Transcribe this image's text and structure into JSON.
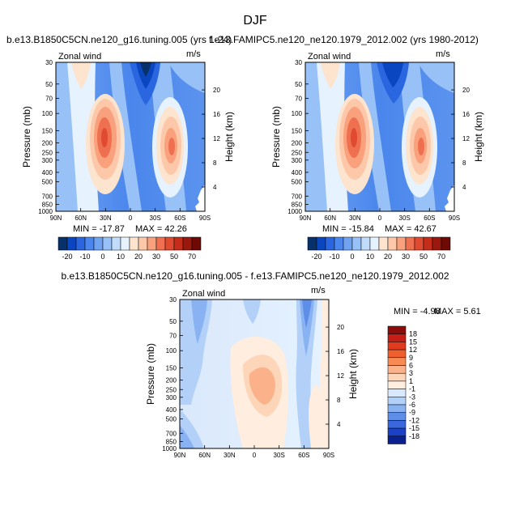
{
  "title": "DJF",
  "panels": [
    {
      "id": "top-left",
      "case_label": "b.e13.B1850C5CN.ne120_g16.tuning.005 (yrs 1-24)",
      "var_label": "Zonal wind",
      "units": "m/s",
      "ylabel": "Pressure (mb)",
      "y2label": "Height (km)",
      "min_text": "MIN = -17.87",
      "max_text": "MAX =   42.26"
    },
    {
      "id": "top-right",
      "case_label": "f.e13.FAMIPC5.ne120_ne120.1979_2012.002 (yrs 1980-2012)",
      "var_label": "Zonal wind",
      "units": "m/s",
      "ylabel": "Pressure (mb)",
      "y2label": "Height (km)",
      "min_text": "MIN = -15.84",
      "max_text": "MAX =   42.67"
    },
    {
      "id": "bottom",
      "case_label": "b.e13.B1850C5CN.ne120_g16.tuning.005 - f.e13.FAMIPC5.ne120_ne120.1979_2012.002",
      "var_label": "Zonal wind",
      "units": "m/s",
      "ylabel": "Pressure (mb)",
      "y2label": "Height (km)",
      "min_text": "MIN =   -4.98",
      "max_text": "MAX =    5.61"
    }
  ],
  "axes": {
    "x_ticks": [
      "90N",
      "60N",
      "30N",
      "0",
      "30S",
      "60S",
      "90S"
    ],
    "y_ticks": [
      "30",
      "50",
      "70",
      "100",
      "150",
      "200",
      "250",
      "300",
      "400",
      "500",
      "700",
      "850",
      "1000"
    ],
    "y2_ticks": [
      "20",
      "16",
      "12",
      "8",
      "4"
    ]
  },
  "colorbars": {
    "top_labels": [
      "-20",
      "-10",
      "0",
      "10",
      "20",
      "30",
      "50",
      "70"
    ],
    "top_colors": [
      "#08306b",
      "#0a46c0",
      "#2a66e0",
      "#4a86ec",
      "#6fa3f2",
      "#97c1f7",
      "#c1dcfb",
      "#e6f2fe",
      "#fde4cf",
      "#fcc8a9",
      "#f8a17c",
      "#ef7051",
      "#df4a30",
      "#c32d1a",
      "#9b180e",
      "#6e0a06"
    ],
    "diff_labels": [
      "18",
      "15",
      "12",
      "9",
      "6",
      "3",
      "1",
      "-1",
      "-3",
      "-6",
      "-9",
      "-12",
      "-15",
      "-18"
    ],
    "diff_colors": [
      "#8a0d0b",
      "#c41e16",
      "#e03a1f",
      "#f0602f",
      "#f78a55",
      "#fbb28a",
      "#fdd5b8",
      "#ffeedf",
      "#d9e8fc",
      "#b2d0f8",
      "#89b2f2",
      "#5f8ee9",
      "#3a68dc",
      "#1d41c4",
      "#0a208e"
    ]
  },
  "chart_data": [
    {
      "type": "heatmap",
      "title": "b.e13.B1850C5CN.ne120_g16.tuning.005 (yrs 1-24)",
      "variable": "Zonal wind",
      "units": "m/s",
      "xlabel": "",
      "ylabel": "Pressure (mb)",
      "y2label": "Height (km)",
      "x_range": [
        "90N",
        "90S"
      ],
      "y_range_mb": [
        1000,
        30
      ],
      "y_scale": "log",
      "min": -17.87,
      "max": 42.26,
      "features": [
        {
          "lat": 32,
          "p_mb": 200,
          "u": 40
        },
        {
          "lat": -45,
          "p_mb": 250,
          "u": 32
        },
        {
          "lat": -8,
          "p_mb": 30,
          "u": -18
        }
      ]
    },
    {
      "type": "heatmap",
      "title": "f.e13.FAMIPC5.ne120_ne120.1979_2012.002 (yrs 1980-2012)",
      "variable": "Zonal wind",
      "units": "m/s",
      "xlabel": "",
      "ylabel": "Pressure (mb)",
      "y2label": "Height (km)",
      "x_range": [
        "90N",
        "90S"
      ],
      "y_range_mb": [
        1000,
        30
      ],
      "y_scale": "log",
      "min": -15.84,
      "max": 42.67,
      "features": [
        {
          "lat": 32,
          "p_mb": 200,
          "u": 41
        },
        {
          "lat": -45,
          "p_mb": 250,
          "u": 34
        },
        {
          "lat": -8,
          "p_mb": 30,
          "u": -16
        }
      ]
    },
    {
      "type": "heatmap",
      "title": "b.e13.B1850C5CN.ne120_g16.tuning.005 - f.e13.FAMIPC5.ne120_ne120.1979_2012.002",
      "variable": "Zonal wind",
      "units": "m/s",
      "xlabel": "",
      "ylabel": "Pressure (mb)",
      "y2label": "Height (km)",
      "x_range": [
        "90N",
        "90S"
      ],
      "y_range_mb": [
        1000,
        30
      ],
      "y_scale": "log",
      "min": -4.98,
      "max": 5.61,
      "features": [
        {
          "lat": 0,
          "p_mb": 200,
          "u": 5
        },
        {
          "lat": -60,
          "p_mb": 100,
          "u": -5
        },
        {
          "lat": 60,
          "p_mb": 70,
          "u": -4
        }
      ]
    }
  ]
}
